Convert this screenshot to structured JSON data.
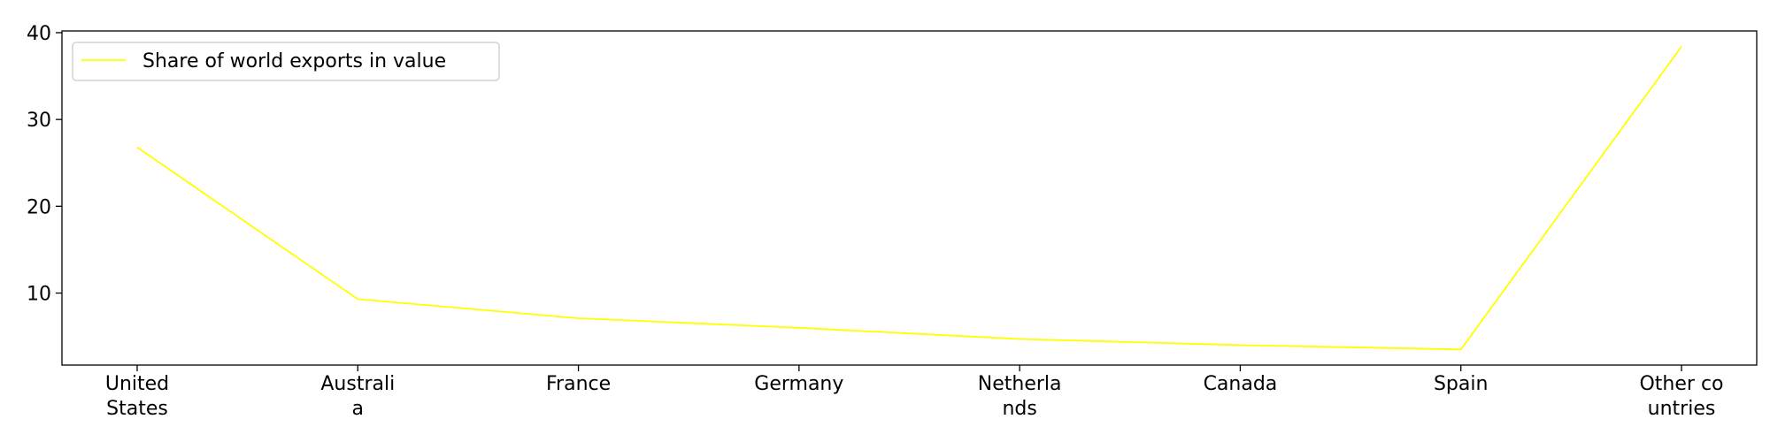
{
  "chart_data": {
    "type": "line",
    "categories": [
      [
        "United",
        "States"
      ],
      [
        "Australi",
        "a"
      ],
      [
        "France"
      ],
      [
        "Germany"
      ],
      [
        "Netherla",
        "nds"
      ],
      [
        "Canada"
      ],
      [
        "Spain"
      ],
      [
        "Other co",
        "untries"
      ]
    ],
    "series": [
      {
        "name": "Share of world exports in value",
        "color": "#ffff00",
        "values": [
          26.8,
          9.3,
          7.1,
          6.0,
          4.7,
          4.0,
          3.5,
          38.4
        ]
      }
    ],
    "title": "",
    "xlabel": "",
    "ylabel": "",
    "ylim": [
      1.7,
      40.2
    ],
    "yticks": [
      10,
      20,
      30,
      40
    ],
    "grid": false,
    "legend_position": "top-left"
  }
}
